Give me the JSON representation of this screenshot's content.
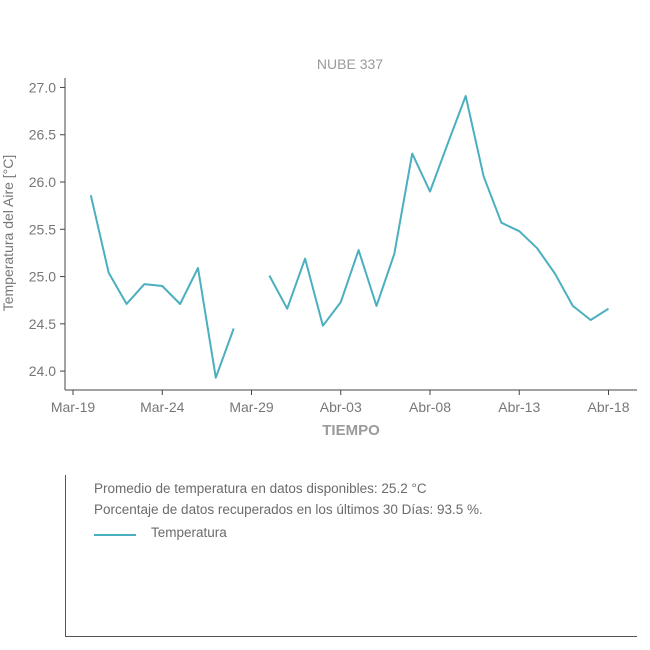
{
  "chart_data": {
    "type": "line",
    "title": "NUBE 337",
    "xlabel": "TIEMPO",
    "ylabel": "Temperatura del Aire [°C]",
    "ylim": [
      23.8,
      27.1
    ],
    "yticks": [
      "24.0",
      "24.5",
      "25.0",
      "25.5",
      "26.0",
      "26.5",
      "27.0"
    ],
    "xticks": [
      "Mar-19",
      "Mar-24",
      "Mar-29",
      "Abr-03",
      "Abr-08",
      "Abr-13",
      "Abr-18"
    ],
    "x_dates": [
      "Mar-20",
      "Mar-21",
      "Mar-22",
      "Mar-23",
      "Mar-24",
      "Mar-25",
      "Mar-26",
      "Mar-27",
      "Mar-28",
      "Mar-29",
      "Mar-30",
      "Mar-31",
      "Abr-01",
      "Abr-02",
      "Abr-03",
      "Abr-04",
      "Abr-05",
      "Abr-06",
      "Abr-07",
      "Abr-08",
      "Abr-09",
      "Abr-10",
      "Abr-11",
      "Abr-12",
      "Abr-13",
      "Abr-14",
      "Abr-15",
      "Abr-16",
      "Abr-17",
      "Abr-18"
    ],
    "series": [
      {
        "color": "#4aafbf",
        "values": [
          25.86,
          25.04,
          24.71,
          24.92,
          24.9,
          24.71,
          25.09,
          23.93,
          24.45,
          null,
          25.01,
          24.66,
          25.19,
          24.48,
          24.73,
          25.28,
          24.69,
          25.24,
          26.3,
          25.9,
          26.41,
          26.91,
          26.06,
          25.57,
          25.48,
          25.3,
          25.03,
          24.69,
          24.54,
          24.66
        ]
      }
    ],
    "grid": false
  },
  "info": {
    "avg_text": "Promedio de temperatura en datos disponibles: 25.2 °C",
    "pct_text": "Porcentaje de datos recuperados en los últimos 30 Días: 93.5 %.",
    "legend_label": "Temperatura"
  }
}
